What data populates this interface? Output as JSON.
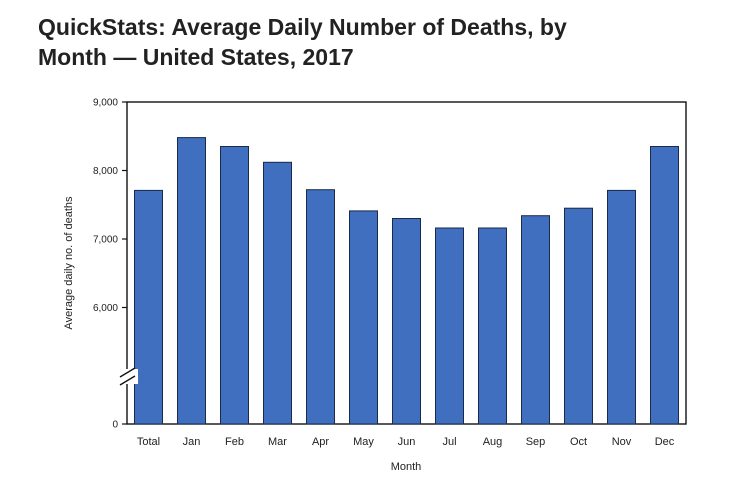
{
  "chart_data": {
    "type": "bar",
    "title_lines": [
      "QuickStats: Average Daily Number of Deaths, by",
      "Month — United States, 2017"
    ],
    "xlabel": "Month",
    "ylabel": "Average daily no. of deaths",
    "categories": [
      "Total",
      "Jan",
      "Feb",
      "Mar",
      "Apr",
      "May",
      "Jun",
      "Jul",
      "Aug",
      "Sep",
      "Oct",
      "Nov",
      "Dec"
    ],
    "values": [
      7710,
      8480,
      8350,
      8120,
      7720,
      7410,
      7300,
      7160,
      7160,
      7340,
      7450,
      7710,
      8350
    ],
    "ylim": [
      5000,
      9000
    ],
    "yticks": [
      0,
      6000,
      7000,
      8000,
      9000
    ],
    "ytick_labels": [
      "0",
      "6,000",
      "7,000",
      "8,000",
      "9,000"
    ],
    "axis_break": true,
    "grid": false,
    "bar_color": "#3f6fbe",
    "bar_edge_color": "#1a2a4a"
  }
}
